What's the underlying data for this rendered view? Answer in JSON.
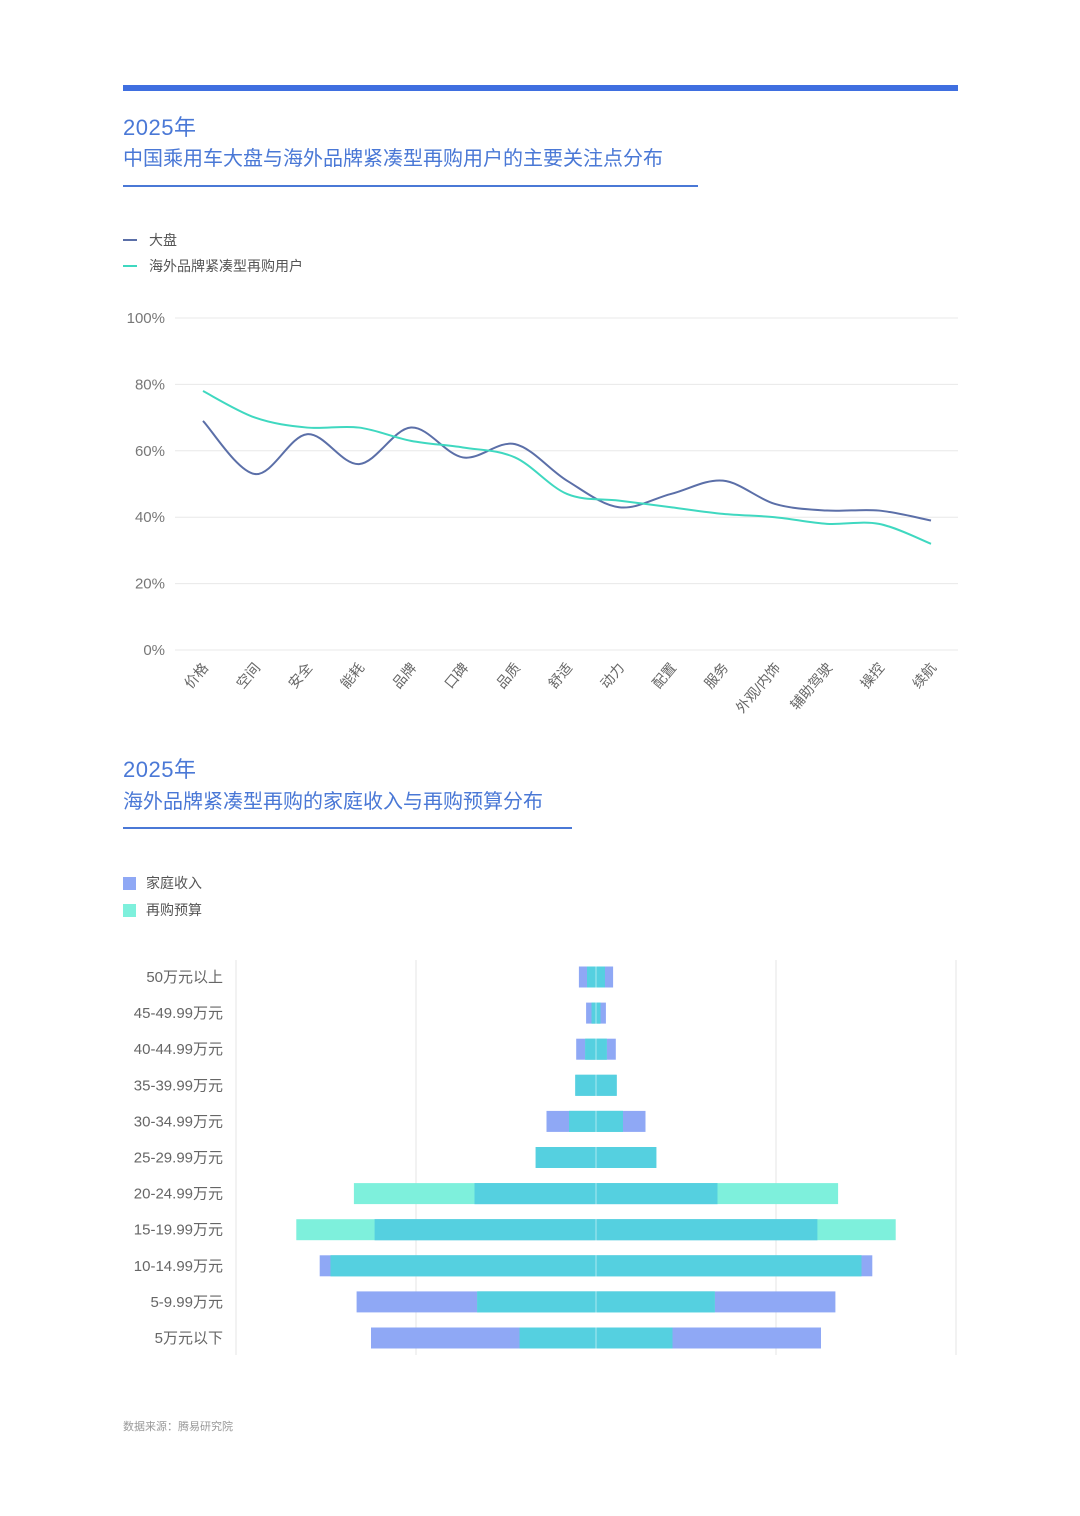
{
  "section1": {
    "year": "2025年",
    "title": "中国乘用车大盘与海外品牌紧凑型再购用户的主要关注点分布"
  },
  "section2": {
    "year": "2025年",
    "title": "海外品牌紧凑型再购的家庭收入与再购预算分布"
  },
  "source": "数据来源：腾易研究院",
  "colors": {
    "accent": "#3f6fe0",
    "series_market": "#5b6fa8",
    "series_overseas": "#3fd8c0",
    "income": "#8fa8f5",
    "budget": "#7ef0dc",
    "overlap": "#55d0e0"
  },
  "chart_data": [
    {
      "type": "line",
      "categories": [
        "价格",
        "空间",
        "安全",
        "能耗",
        "品牌",
        "口碑",
        "品质",
        "舒适",
        "动力",
        "配置",
        "服务",
        "外观/内饰",
        "辅助驾驶",
        "操控",
        "续航"
      ],
      "series": [
        {
          "name": "大盘",
          "values": [
            69,
            53,
            65,
            56,
            67,
            58,
            62,
            51,
            43,
            47,
            51,
            44,
            42,
            42,
            39
          ]
        },
        {
          "name": "海外品牌紧凑型再购用户",
          "values": [
            78,
            70,
            67,
            67,
            63,
            61,
            58,
            47,
            45,
            43,
            41,
            40,
            38,
            38,
            32
          ]
        }
      ],
      "yticks": [
        "0%",
        "20%",
        "40%",
        "60%",
        "80%",
        "100%"
      ],
      "ylim": [
        0,
        100
      ],
      "grid": true,
      "legend": "top-left"
    },
    {
      "type": "bar",
      "orientation": "horizontal-centered",
      "categories": [
        "50万元以上",
        "45-49.99万元",
        "40-44.99万元",
        "35-39.99万元",
        "30-34.99万元",
        "25-29.99万元",
        "20-24.99万元",
        "15-19.99万元",
        "10-14.99万元",
        "5-9.99万元",
        "5万元以下"
      ],
      "series": [
        {
          "name": "家庭收入",
          "values": [
            1.9,
            1.1,
            2.2,
            2.3,
            5.5,
            6.7,
            13.5,
            24.6,
            30.7,
            26.6,
            25.0
          ]
        },
        {
          "name": "再购预算",
          "values": [
            1.0,
            0.5,
            1.2,
            2.3,
            3.0,
            6.7,
            26.9,
            33.3,
            29.5,
            13.2,
            8.5
          ]
        }
      ],
      "legend": "top-left"
    }
  ]
}
